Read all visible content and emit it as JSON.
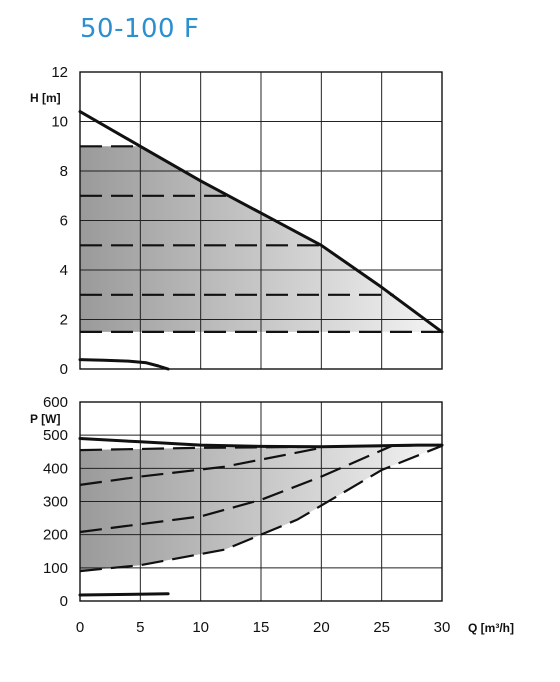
{
  "title": "50-100 F",
  "colors": {
    "title": "#2b8fd0",
    "shade_start": "#9a9a9a",
    "shade_end": "#f4f4f4"
  },
  "chart_data": [
    {
      "type": "line",
      "ylabel": "H [m]",
      "xlim": [
        0,
        30
      ],
      "ylim": [
        0,
        12
      ],
      "x_ticks": [
        0,
        5,
        10,
        15,
        20,
        25,
        30
      ],
      "y_ticks": [
        0,
        2,
        4,
        6,
        8,
        10,
        12
      ],
      "grid": true,
      "series": [
        {
          "style": "solid-max",
          "points": [
            [
              0,
              10.4
            ],
            [
              5,
              9.0
            ],
            [
              10,
              7.6
            ],
            [
              15,
              6.3
            ],
            [
              20,
              5.0
            ],
            [
              25,
              3.3
            ],
            [
              30,
              1.5
            ]
          ]
        },
        {
          "style": "dashed",
          "points": [
            [
              0,
              9.0
            ],
            [
              5,
              9.0
            ]
          ]
        },
        {
          "style": "dashed",
          "points": [
            [
              0,
              7.0
            ],
            [
              12.5,
              7.0
            ]
          ]
        },
        {
          "style": "dashed",
          "points": [
            [
              0,
              5.0
            ],
            [
              20,
              5.0
            ]
          ]
        },
        {
          "style": "dashed",
          "points": [
            [
              0,
              3.0
            ],
            [
              26,
              3.0
            ]
          ]
        },
        {
          "style": "dashed",
          "points": [
            [
              0,
              1.5
            ],
            [
              30,
              1.5
            ]
          ]
        },
        {
          "style": "solid-min",
          "points": [
            [
              0,
              0.38
            ],
            [
              2,
              0.35
            ],
            [
              4,
              0.32
            ],
            [
              5.5,
              0.25
            ],
            [
              6.5,
              0.12
            ],
            [
              7.3,
              0.0
            ]
          ]
        }
      ],
      "shaded_region": [
        [
          0,
          1.5
        ],
        [
          0,
          9.0
        ],
        [
          5,
          9.0
        ],
        [
          10,
          7.6
        ],
        [
          15,
          6.3
        ],
        [
          20,
          5.0
        ],
        [
          25,
          3.3
        ],
        [
          30,
          1.5
        ]
      ]
    },
    {
      "type": "line",
      "ylabel": "P [W]",
      "xlabel": "Q [m³/h]",
      "xlim": [
        0,
        30
      ],
      "ylim": [
        0,
        600
      ],
      "x_ticks": [
        0,
        5,
        10,
        15,
        20,
        25,
        30
      ],
      "y_ticks": [
        0,
        100,
        200,
        300,
        400,
        500,
        600
      ],
      "grid": true,
      "series": [
        {
          "style": "solid-max",
          "points": [
            [
              0,
              490
            ],
            [
              5,
              480
            ],
            [
              10,
              470
            ],
            [
              15,
              466
            ],
            [
              20,
              465
            ],
            [
              25,
              468
            ],
            [
              28,
              470
            ],
            [
              30,
              470
            ]
          ]
        },
        {
          "style": "dashed",
          "points": [
            [
              0,
              455
            ],
            [
              10,
              462
            ],
            [
              20,
              465
            ],
            [
              26,
              468
            ],
            [
              30,
              470
            ]
          ]
        },
        {
          "style": "dashed",
          "points": [
            [
              0,
              350
            ],
            [
              5,
              375
            ],
            [
              12,
              405
            ],
            [
              20,
              462
            ]
          ]
        },
        {
          "style": "dashed",
          "points": [
            [
              0,
              208
            ],
            [
              10,
              255
            ],
            [
              15,
              305
            ],
            [
              20,
              375
            ],
            [
              26,
              470
            ]
          ]
        },
        {
          "style": "dashed",
          "points": [
            [
              0,
              90
            ],
            [
              5,
              108
            ],
            [
              12,
              155
            ],
            [
              18,
              245
            ],
            [
              25,
              395
            ],
            [
              30,
              468
            ]
          ]
        },
        {
          "style": "solid-min",
          "points": [
            [
              0,
              18
            ],
            [
              4,
              20
            ],
            [
              7.3,
              22
            ]
          ]
        }
      ],
      "shaded_region": [
        [
          0,
          90
        ],
        [
          5,
          108
        ],
        [
          12,
          155
        ],
        [
          18,
          245
        ],
        [
          25,
          395
        ],
        [
          30,
          468
        ],
        [
          30,
          470
        ],
        [
          26,
          468
        ],
        [
          20,
          465
        ],
        [
          10,
          462
        ],
        [
          0,
          455
        ]
      ]
    }
  ]
}
